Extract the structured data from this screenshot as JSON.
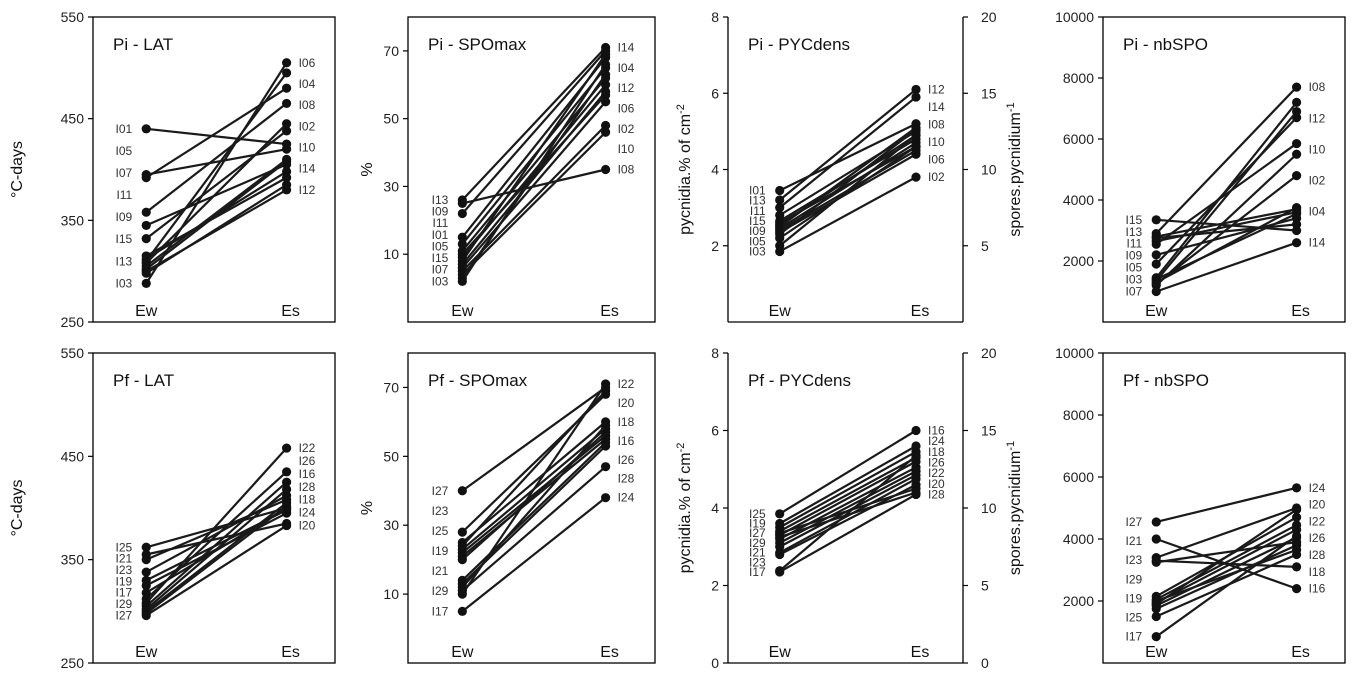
{
  "chart_data": [
    {
      "type": "line",
      "title": "Pi - LAT",
      "ylabel": "°C-days",
      "ylim": [
        250,
        550
      ],
      "yticks": [
        250,
        350,
        450,
        550
      ],
      "categories": [
        "Ew",
        "Es"
      ],
      "labels_left": [
        "I01",
        "I05",
        "I07",
        "I11",
        "I09",
        "I15",
        "I13",
        "I03"
      ],
      "labels_right": [
        "I06",
        "I04",
        "I08",
        "I02",
        "I10",
        "I14",
        "I12"
      ],
      "series": [
        {
          "name": "I01",
          "values": [
            395,
            420
          ]
        },
        {
          "name": "I02",
          "values": [
            440,
            425
          ]
        },
        {
          "name": "I03",
          "values": [
            288,
            505
          ]
        },
        {
          "name": "I04",
          "values": [
            392,
            480
          ]
        },
        {
          "name": "I05",
          "values": [
            345,
            405
          ]
        },
        {
          "name": "I06",
          "values": [
            310,
            495
          ]
        },
        {
          "name": "I07",
          "values": [
            332,
            438
          ]
        },
        {
          "name": "I08",
          "values": [
            358,
            465
          ]
        },
        {
          "name": "I09",
          "values": [
            302,
            408
          ]
        },
        {
          "name": "I10",
          "values": [
            305,
            410
          ]
        },
        {
          "name": "I11",
          "values": [
            312,
            398
          ]
        },
        {
          "name": "I12",
          "values": [
            300,
            380
          ]
        },
        {
          "name": "I13",
          "values": [
            298,
            385
          ]
        },
        {
          "name": "I14",
          "values": [
            315,
            392
          ]
        },
        {
          "name": "I15",
          "values": [
            308,
            445
          ]
        }
      ]
    },
    {
      "type": "line",
      "title": "Pi - SPOmax",
      "ylabel": "%",
      "ylim": [
        -10,
        80
      ],
      "yticks": [
        10,
        30,
        50,
        70
      ],
      "categories": [
        "Ew",
        "Es"
      ],
      "labels_left": [
        "I13",
        "I09",
        "I11",
        "I01",
        "I05",
        "I15",
        "I07",
        "I03"
      ],
      "labels_right": [
        "I14",
        "I04",
        "I12",
        "I06",
        "I02",
        "I10",
        "I08"
      ],
      "series": [
        {
          "name": "I01",
          "values": [
            26,
            71
          ]
        },
        {
          "name": "I02",
          "values": [
            25,
            35
          ]
        },
        {
          "name": "I03",
          "values": [
            22,
            70
          ]
        },
        {
          "name": "I04",
          "values": [
            15,
            68
          ]
        },
        {
          "name": "I05",
          "values": [
            13,
            65
          ]
        },
        {
          "name": "I06",
          "values": [
            11,
            62
          ]
        },
        {
          "name": "I07",
          "values": [
            9,
            60
          ]
        },
        {
          "name": "I08",
          "values": [
            7,
            58
          ]
        },
        {
          "name": "I09",
          "values": [
            6,
            55
          ]
        },
        {
          "name": "I10",
          "values": [
            5,
            48
          ]
        },
        {
          "name": "I11",
          "values": [
            4,
            46
          ]
        },
        {
          "name": "I12",
          "values": [
            3,
            63
          ]
        },
        {
          "name": "I13",
          "values": [
            2,
            66
          ]
        },
        {
          "name": "I14",
          "values": [
            8,
            69
          ]
        },
        {
          "name": "I15",
          "values": [
            10,
            57
          ]
        }
      ]
    },
    {
      "type": "line",
      "title": "Pi - PYCdens",
      "ylabel": "pycnidia.% of cm",
      "ylabel_sup": "-2",
      "ylim": [
        0,
        8
      ],
      "yticks": [
        2,
        4,
        6,
        8
      ],
      "y2lim": [
        0,
        20
      ],
      "y2ticks": [
        5,
        10,
        15,
        20
      ],
      "ylabel2": "spores.pycnidium",
      "ylabel2_sup": "-1",
      "categories": [
        "Ew",
        "Es"
      ],
      "labels_left": [
        "I01",
        "I13",
        "I11",
        "I15",
        "I09",
        "I05",
        "I03"
      ],
      "labels_right": [
        "I12",
        "I14",
        "I08",
        "I10",
        "I06",
        "I02"
      ],
      "series": [
        {
          "name": "I01",
          "values": [
            3.45,
            5.2
          ]
        },
        {
          "name": "I02",
          "values": [
            3.2,
            6.1
          ]
        },
        {
          "name": "I03",
          "values": [
            3.0,
            5.9
          ]
        },
        {
          "name": "I04",
          "values": [
            2.8,
            5.0
          ]
        },
        {
          "name": "I05",
          "values": [
            2.65,
            4.8
          ]
        },
        {
          "name": "I06",
          "values": [
            2.6,
            4.6
          ]
        },
        {
          "name": "I07",
          "values": [
            2.55,
            4.9
          ]
        },
        {
          "name": "I08",
          "values": [
            2.5,
            5.1
          ]
        },
        {
          "name": "I09",
          "values": [
            2.45,
            4.7
          ]
        },
        {
          "name": "I10",
          "values": [
            2.4,
            4.5
          ]
        },
        {
          "name": "I11",
          "values": [
            2.35,
            4.4
          ]
        },
        {
          "name": "I12",
          "values": [
            2.2,
            4.6
          ]
        },
        {
          "name": "I13",
          "values": [
            2.0,
            4.9
          ]
        },
        {
          "name": "I14",
          "values": [
            1.85,
            3.8
          ]
        },
        {
          "name": "I15",
          "values": [
            2.3,
            5.05
          ]
        }
      ]
    },
    {
      "type": "line",
      "title": "Pi - nbSPO",
      "ylabel": "",
      "ylim": [
        0,
        10000
      ],
      "yticks": [
        2000,
        4000,
        6000,
        8000,
        10000
      ],
      "categories": [
        "Ew",
        "Es"
      ],
      "labels_left": [
        "I15",
        "I13",
        "I11",
        "I09",
        "I05",
        "I03",
        "I07"
      ],
      "labels_right": [
        "I08",
        "I12",
        "I10",
        "I02",
        "I04",
        "I14"
      ],
      "series": [
        {
          "name": "I01",
          "values": [
            3350,
            3000
          ]
        },
        {
          "name": "I02",
          "values": [
            2900,
            7700
          ]
        },
        {
          "name": "I03",
          "values": [
            2800,
            3700
          ]
        },
        {
          "name": "I04",
          "values": [
            2650,
            3600
          ]
        },
        {
          "name": "I05",
          "values": [
            2550,
            5850
          ]
        },
        {
          "name": "I06",
          "values": [
            2200,
            3400
          ]
        },
        {
          "name": "I07",
          "values": [
            1900,
            6700
          ]
        },
        {
          "name": "I08",
          "values": [
            1450,
            7200
          ]
        },
        {
          "name": "I09",
          "values": [
            1350,
            6900
          ]
        },
        {
          "name": "I10",
          "values": [
            1250,
            4800
          ]
        },
        {
          "name": "I11",
          "values": [
            1200,
            5500
          ]
        },
        {
          "name": "I12",
          "values": [
            1000,
            2600
          ]
        },
        {
          "name": "I13",
          "values": [
            1300,
            3750
          ]
        },
        {
          "name": "I14",
          "values": [
            2750,
            3200
          ]
        },
        {
          "name": "I15",
          "values": [
            1400,
            3550
          ]
        }
      ]
    },
    {
      "type": "line",
      "title": "Pf - LAT",
      "ylabel": "°C-days",
      "ylim": [
        250,
        550
      ],
      "yticks": [
        250,
        350,
        450,
        550
      ],
      "categories": [
        "Ew",
        "Es"
      ],
      "labels_left": [
        "I25",
        "I21",
        "I23",
        "I19",
        "I17",
        "I29",
        "I27"
      ],
      "labels_right": [
        "I22",
        "I26",
        "I16",
        "I28",
        "I18",
        "I24",
        "I20"
      ],
      "series": [
        {
          "name": "I16",
          "values": [
            362,
            400
          ]
        },
        {
          "name": "I17",
          "values": [
            355,
            385
          ]
        },
        {
          "name": "I18",
          "values": [
            350,
            408
          ]
        },
        {
          "name": "I19",
          "values": [
            338,
            412
          ]
        },
        {
          "name": "I20",
          "values": [
            330,
            398
          ]
        },
        {
          "name": "I21",
          "values": [
            325,
            395
          ]
        },
        {
          "name": "I22",
          "values": [
            318,
            400
          ]
        },
        {
          "name": "I23",
          "values": [
            312,
            435
          ]
        },
        {
          "name": "I24",
          "values": [
            308,
            458
          ]
        },
        {
          "name": "I25",
          "values": [
            305,
            425
          ]
        },
        {
          "name": "I26",
          "values": [
            302,
            418
          ]
        },
        {
          "name": "I27",
          "values": [
            300,
            405
          ]
        },
        {
          "name": "I28",
          "values": [
            298,
            402
          ]
        },
        {
          "name": "I29",
          "values": [
            296,
            383
          ]
        }
      ]
    },
    {
      "type": "line",
      "title": "Pf - SPOmax",
      "ylabel": "%",
      "ylim": [
        -10,
        80
      ],
      "yticks": [
        10,
        30,
        50,
        70
      ],
      "categories": [
        "Ew",
        "Es"
      ],
      "labels_left": [
        "I27",
        "I23",
        "I25",
        "I19",
        "I21",
        "I29",
        "I17"
      ],
      "labels_right": [
        "I22",
        "I20",
        "I18",
        "I16",
        "I26",
        "I28",
        "I24"
      ],
      "series": [
        {
          "name": "I16",
          "values": [
            40,
            70
          ]
        },
        {
          "name": "I17",
          "values": [
            28,
            68
          ]
        },
        {
          "name": "I18",
          "values": [
            25,
            60
          ]
        },
        {
          "name": "I19",
          "values": [
            23,
            58
          ]
        },
        {
          "name": "I20",
          "values": [
            22,
            56
          ]
        },
        {
          "name": "I21",
          "values": [
            21,
            55
          ]
        },
        {
          "name": "I22",
          "values": [
            20,
            57
          ]
        },
        {
          "name": "I23",
          "values": [
            14,
            54
          ]
        },
        {
          "name": "I24",
          "values": [
            12,
            59
          ]
        },
        {
          "name": "I25",
          "values": [
            10,
            71
          ]
        },
        {
          "name": "I26",
          "values": [
            11,
            47
          ]
        },
        {
          "name": "I27",
          "values": [
            5,
            38
          ]
        },
        {
          "name": "I28",
          "values": [
            13,
            53
          ]
        },
        {
          "name": "I29",
          "values": [
            24,
            69
          ]
        }
      ]
    },
    {
      "type": "line",
      "title": "Pf - PYCdens",
      "ylabel": "pycnidia.% of cm",
      "ylabel_sup": "-2",
      "ylim": [
        0,
        8
      ],
      "yticks": [
        0,
        2,
        4,
        6,
        8
      ],
      "y2lim": [
        0,
        20
      ],
      "y2ticks": [
        0,
        5,
        10,
        15,
        20
      ],
      "ylabel2": "spores.pycnidium",
      "ylabel2_sup": "-1",
      "categories": [
        "Ew",
        "Es"
      ],
      "labels_left": [
        "I25",
        "I19",
        "I27",
        "I29",
        "I21",
        "I23",
        "I17"
      ],
      "labels_right": [
        "I16",
        "I24",
        "I18",
        "I26",
        "I22",
        "I20",
        "I28"
      ],
      "series": [
        {
          "name": "I16",
          "values": [
            3.85,
            6.0
          ]
        },
        {
          "name": "I17",
          "values": [
            3.6,
            5.6
          ]
        },
        {
          "name": "I18",
          "values": [
            3.5,
            5.45
          ]
        },
        {
          "name": "I19",
          "values": [
            3.4,
            5.3
          ]
        },
        {
          "name": "I20",
          "values": [
            3.3,
            5.2
          ]
        },
        {
          "name": "I21",
          "values": [
            3.2,
            5.05
          ]
        },
        {
          "name": "I22",
          "values": [
            3.1,
            4.95
          ]
        },
        {
          "name": "I23",
          "values": [
            3.0,
            4.85
          ]
        },
        {
          "name": "I24",
          "values": [
            2.85,
            4.75
          ]
        },
        {
          "name": "I25",
          "values": [
            2.8,
            4.6
          ]
        },
        {
          "name": "I26",
          "values": [
            3.35,
            4.5
          ]
        },
        {
          "name": "I27",
          "values": [
            3.25,
            4.4
          ]
        },
        {
          "name": "I28",
          "values": [
            2.38,
            5.35
          ]
        },
        {
          "name": "I29",
          "values": [
            2.35,
            4.35
          ]
        }
      ]
    },
    {
      "type": "line",
      "title": "Pf - nbSPO",
      "ylabel": "",
      "ylim": [
        0,
        10000
      ],
      "yticks": [
        2000,
        4000,
        6000,
        8000,
        10000
      ],
      "categories": [
        "Ew",
        "Es"
      ],
      "labels_left": [
        "I27",
        "I21",
        "I23",
        "I29",
        "I19",
        "I25",
        "I17"
      ],
      "labels_right": [
        "I24",
        "I20",
        "I22",
        "I26",
        "I28",
        "I18",
        "I16"
      ],
      "series": [
        {
          "name": "I16",
          "values": [
            4550,
            5650
          ]
        },
        {
          "name": "I17",
          "values": [
            4000,
            2400
          ]
        },
        {
          "name": "I18",
          "values": [
            3400,
            5000
          ]
        },
        {
          "name": "I19",
          "values": [
            3300,
            3100
          ]
        },
        {
          "name": "I20",
          "values": [
            2150,
            4700
          ]
        },
        {
          "name": "I21",
          "values": [
            2050,
            4450
          ]
        },
        {
          "name": "I22",
          "values": [
            1950,
            4300
          ]
        },
        {
          "name": "I23",
          "values": [
            1850,
            4050
          ]
        },
        {
          "name": "I24",
          "values": [
            1750,
            3800
          ]
        },
        {
          "name": "I25",
          "values": [
            1500,
            3500
          ]
        },
        {
          "name": "I26",
          "values": [
            850,
            4100
          ]
        },
        {
          "name": "I27",
          "values": [
            3250,
            3900
          ]
        },
        {
          "name": "I28",
          "values": [
            2000,
            3650
          ]
        },
        {
          "name": "I29",
          "values": [
            1900,
            4950
          ]
        }
      ]
    }
  ]
}
